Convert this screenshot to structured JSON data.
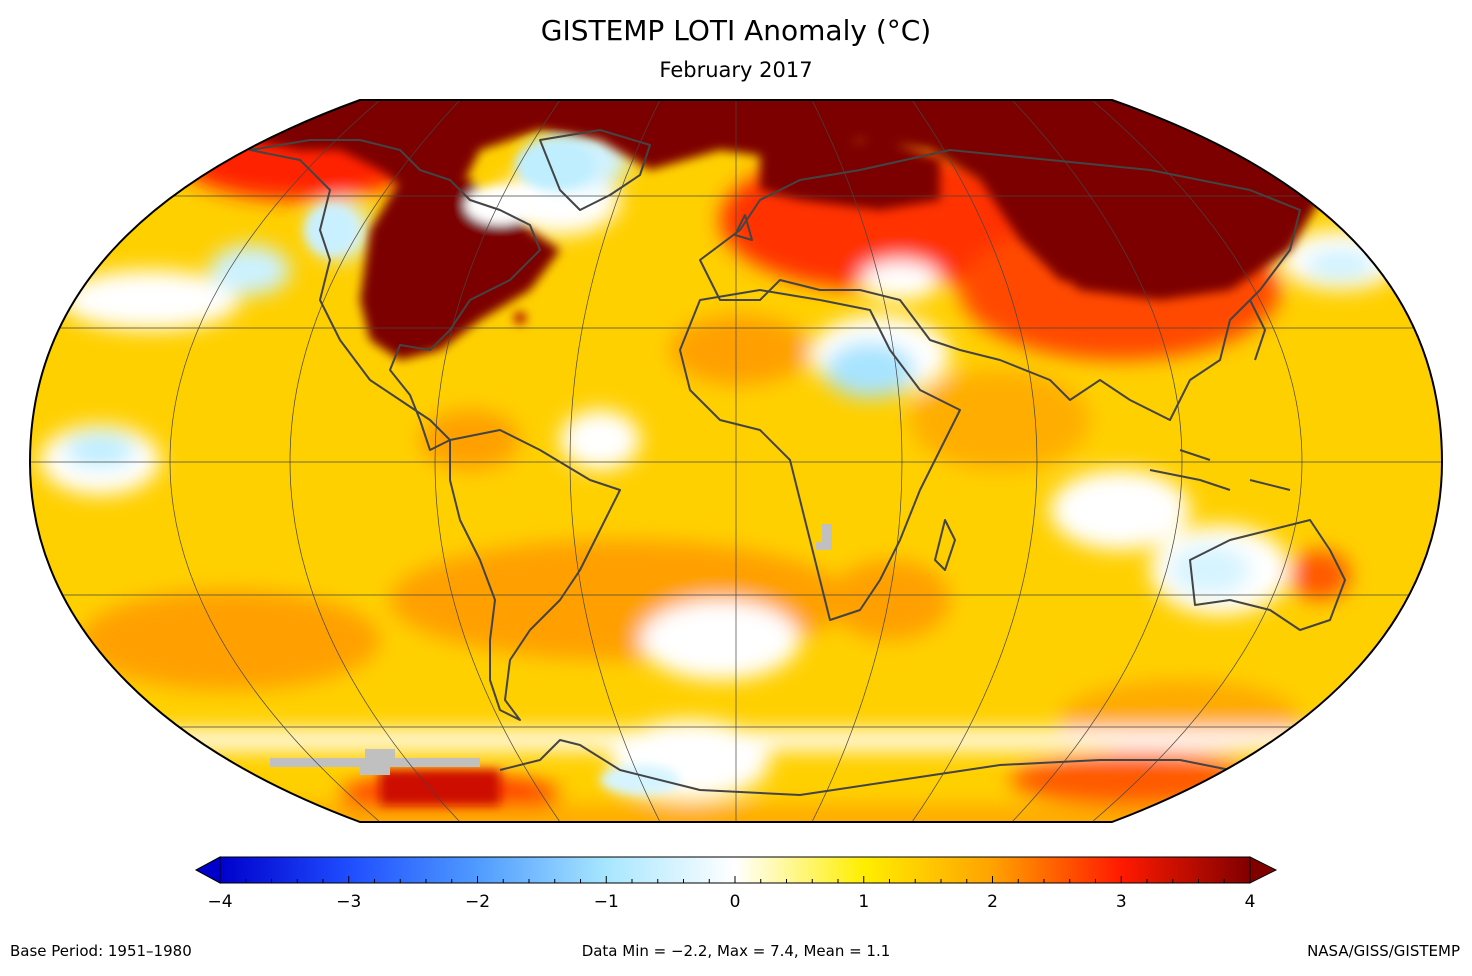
{
  "header": {
    "title": "GISTEMP LOTI Anomaly (°C)",
    "subtitle": "February 2017"
  },
  "colorbar": {
    "ticks": [
      "−4",
      "−3",
      "−2",
      "−1",
      "0",
      "1",
      "2",
      "3",
      "4"
    ],
    "tick_values": [
      -4,
      -3,
      -2,
      -1,
      0,
      1,
      2,
      3,
      4
    ],
    "range": [
      -4,
      4
    ],
    "colors": {
      "min": "#0000cc",
      "cold": "#3b7cff",
      "cool": "#9fe0ff",
      "neutral": "#ffffff",
      "warm": "#ffee00",
      "hot": "#ff8c00",
      "very_hot": "#ee0000",
      "max": "#7a0000"
    }
  },
  "footer": {
    "base_period": "Base Period: 1951–1980",
    "stats": "Data Min = −2.2, Max = 7.4, Mean = 1.1",
    "credit": "NASA/GISS/GISTEMP"
  },
  "map": {
    "projection": "robinson",
    "nodata_color": "#c0c0c0",
    "coastline_color": "#444444"
  }
}
